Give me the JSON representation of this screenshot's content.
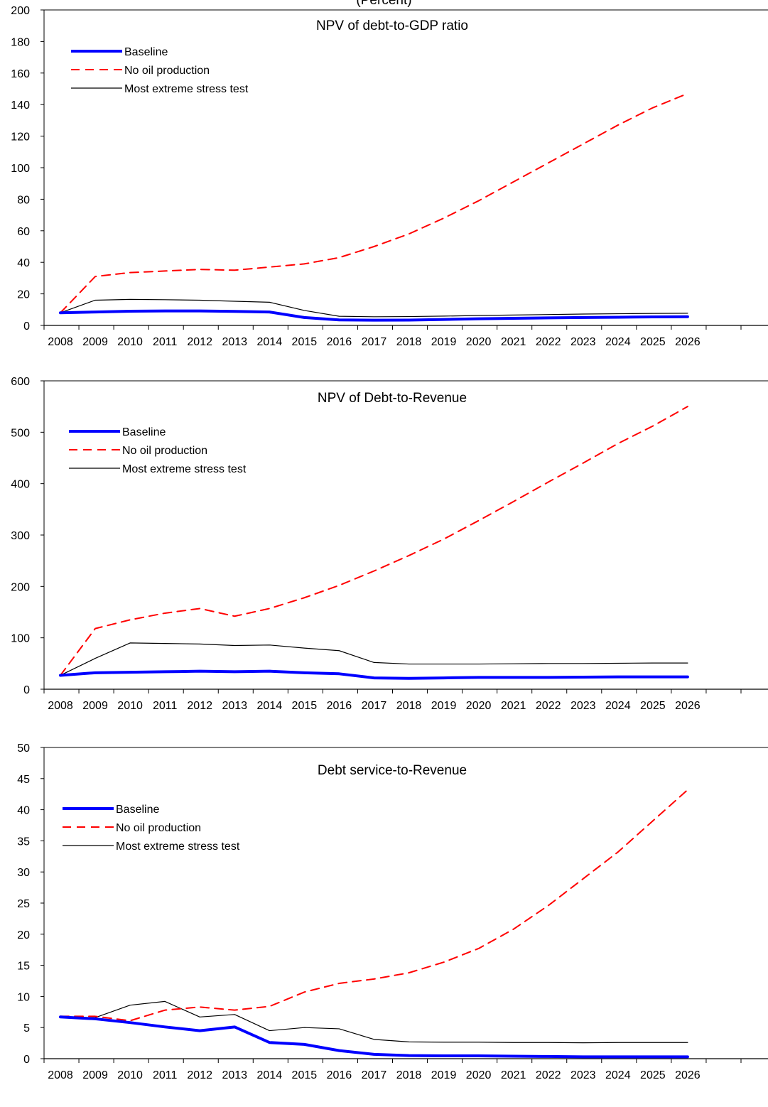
{
  "header": {
    "subtitle": "(Percent)"
  },
  "chart_data": [
    {
      "type": "line",
      "title": "NPV of debt-to-GDP ratio",
      "xlabel": "",
      "ylabel": "",
      "categories": [
        "2008",
        "2009",
        "2010",
        "2011",
        "2012",
        "2013",
        "2014",
        "2015",
        "2016",
        "2017",
        "2018",
        "2019",
        "2020",
        "2021",
        "2022",
        "2023",
        "2024",
        "2025",
        "2026"
      ],
      "ylim": [
        0,
        200
      ],
      "yticks": [
        0,
        20,
        40,
        60,
        80,
        100,
        120,
        140,
        160,
        180,
        200
      ],
      "grid": false,
      "legend": "top-left",
      "series": [
        {
          "name": "Baseline",
          "color": "#0000ff",
          "style": "thick",
          "values": [
            8,
            8.5,
            9,
            9.2,
            9.2,
            8.9,
            8.5,
            5,
            3.5,
            3.3,
            3.4,
            3.8,
            4.2,
            4.5,
            4.8,
            5,
            5.2,
            5.4,
            5.5
          ]
        },
        {
          "name": "No oil production",
          "color": "#ff0000",
          "style": "dashed",
          "values": [
            8,
            31,
            33.5,
            34.5,
            35.5,
            35,
            37,
            39,
            43,
            50,
            58,
            68,
            79,
            91,
            103,
            115,
            127,
            138,
            147
          ]
        },
        {
          "name": "Most extreme stress test",
          "color": "#000000",
          "style": "thin",
          "values": [
            8,
            16,
            16.5,
            16.3,
            16,
            15.3,
            14.7,
            9.5,
            5.8,
            5.5,
            5.6,
            5.9,
            6.3,
            6.6,
            6.9,
            7.2,
            7.4,
            7.6,
            7.7
          ]
        }
      ]
    },
    {
      "type": "line",
      "title": "NPV of Debt-to-Revenue",
      "xlabel": "",
      "ylabel": "",
      "categories": [
        "2008",
        "2009",
        "2010",
        "2011",
        "2012",
        "2013",
        "2014",
        "2015",
        "2016",
        "2017",
        "2018",
        "2019",
        "2020",
        "2021",
        "2022",
        "2023",
        "2024",
        "2025",
        "2026"
      ],
      "ylim": [
        0,
        600
      ],
      "yticks": [
        0,
        100,
        200,
        300,
        400,
        500,
        600
      ],
      "grid": false,
      "legend": "top-left",
      "series": [
        {
          "name": "Baseline",
          "color": "#0000ff",
          "style": "thick",
          "values": [
            27,
            32,
            33,
            34,
            35,
            34,
            35,
            32,
            30,
            22,
            21,
            22,
            23,
            23,
            23,
            23.5,
            24,
            24,
            24
          ]
        },
        {
          "name": "No oil production",
          "color": "#ff0000",
          "style": "dashed",
          "values": [
            27,
            118,
            135,
            148,
            157,
            142,
            157,
            178,
            202,
            230,
            260,
            292,
            328,
            365,
            403,
            440,
            478,
            512,
            550
          ]
        },
        {
          "name": "Most extreme stress test",
          "color": "#000000",
          "style": "thin",
          "values": [
            27,
            60,
            90,
            89,
            88,
            85,
            86,
            80,
            75,
            52,
            49,
            49,
            49,
            49.5,
            50,
            50,
            50.5,
            51,
            51
          ]
        }
      ]
    },
    {
      "type": "line",
      "title": "Debt service-to-Revenue",
      "xlabel": "",
      "ylabel": "",
      "categories": [
        "2008",
        "2009",
        "2010",
        "2011",
        "2012",
        "2013",
        "2014",
        "2015",
        "2016",
        "2017",
        "2018",
        "2019",
        "2020",
        "2021",
        "2022",
        "2023",
        "2024",
        "2025",
        "2026"
      ],
      "ylim": [
        0,
        50
      ],
      "yticks": [
        0,
        5,
        10,
        15,
        20,
        25,
        30,
        35,
        40,
        45,
        50
      ],
      "grid": false,
      "legend": "top-left",
      "series": [
        {
          "name": "Baseline",
          "color": "#0000ff",
          "style": "thick",
          "values": [
            6.7,
            6.4,
            5.8,
            5.1,
            4.5,
            5.1,
            2.6,
            2.3,
            1.3,
            0.7,
            0.5,
            0.45,
            0.45,
            0.4,
            0.35,
            0.3,
            0.3,
            0.3,
            0.3
          ]
        },
        {
          "name": "No oil production",
          "color": "#ff0000",
          "style": "dashed",
          "values": [
            6.8,
            6.8,
            6.1,
            7.8,
            8.3,
            7.8,
            8.4,
            10.7,
            12.1,
            12.8,
            13.8,
            15.5,
            17.7,
            20.8,
            24.6,
            28.9,
            33.2,
            38.2,
            43.2
          ]
        },
        {
          "name": "Most extreme stress test",
          "color": "#000000",
          "style": "thin",
          "values": [
            6.7,
            6.6,
            8.6,
            9.2,
            6.7,
            7.1,
            4.5,
            5.0,
            4.8,
            3.1,
            2.7,
            2.65,
            2.65,
            2.6,
            2.6,
            2.55,
            2.6,
            2.6,
            2.6
          ]
        }
      ]
    }
  ]
}
